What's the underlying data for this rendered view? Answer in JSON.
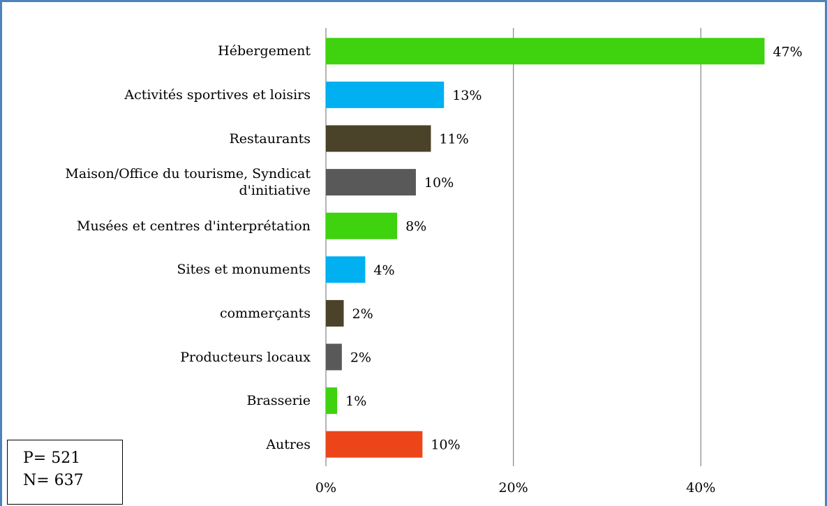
{
  "chart_data": {
    "type": "bar",
    "orientation": "horizontal",
    "categories": [
      "Hébergement",
      "Activités sportives et loisirs",
      "Restaurants",
      "Maison/Office du tourisme, Syndicat d'initiative",
      "Musées et centres d'interprétation",
      "Sites et monuments",
      "commerçants",
      "Producteurs locaux",
      "Brasserie",
      "Autres"
    ],
    "values": [
      46.8,
      12.6,
      11.2,
      9.6,
      7.6,
      4.2,
      1.9,
      1.7,
      1.2,
      10.3
    ],
    "value_labels": [
      "47%",
      "13%",
      "11%",
      "10%",
      "8%",
      "4%",
      "2%",
      "2%",
      "1%",
      "10%"
    ],
    "colors": [
      "#3fd20f",
      "#00b0f0",
      "#4a4229",
      "#595959",
      "#3fd20f",
      "#00b0f0",
      "#4a4229",
      "#595959",
      "#3fd20f",
      "#eb4519"
    ],
    "xlim": [
      0,
      53
    ],
    "xticks": [
      {
        "value": 0,
        "label": "0%"
      },
      {
        "value": 20,
        "label": "20%"
      },
      {
        "value": 40,
        "label": "40%"
      }
    ],
    "grid": true,
    "annotations": [
      "P= 521",
      "N= 637"
    ]
  }
}
